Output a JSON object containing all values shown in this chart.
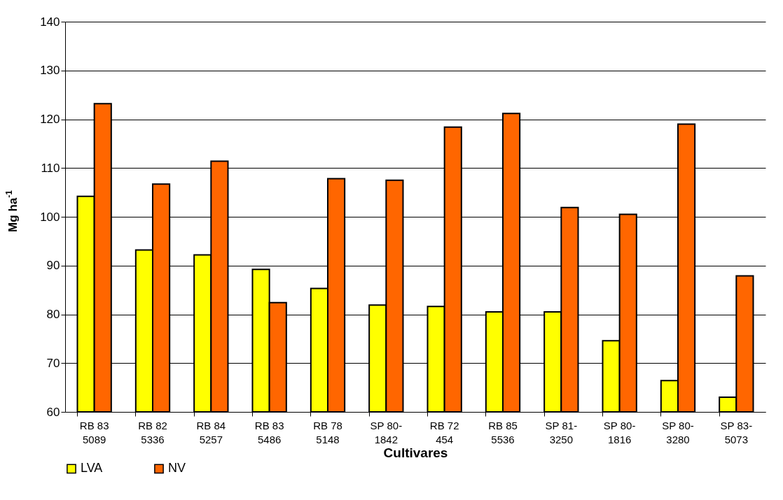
{
  "chart_data": {
    "type": "bar",
    "xlabel": "Cultivares",
    "ylabel": "Mg ha$^{-1}$",
    "categories": [
      "RB 83 5089",
      "RB 82 5336",
      "RB 84 5257",
      "RB 83 5486",
      "RB 78 5148",
      "SP 80-1842",
      "RB 72 454",
      "RB 85 5536",
      "SP 81-3250",
      "SP 80-1816",
      "SP 80-3280",
      "SP 83-5073"
    ],
    "series": [
      {
        "name": "LVA",
        "color": "#ffff00",
        "values": [
          104.2,
          93.2,
          92.2,
          89.2,
          85.3,
          81.9,
          81.6,
          80.5,
          80.5,
          74.6,
          66.4,
          63.0
        ]
      },
      {
        "name": "NV",
        "color": "#ff6600",
        "values": [
          123.2,
          106.7,
          111.4,
          82.4,
          107.8,
          107.5,
          118.4,
          121.2,
          101.9,
          100.5,
          119.0,
          87.9
        ]
      }
    ],
    "ylim": [
      60,
      140
    ],
    "yticks": [
      60,
      70,
      80,
      90,
      100,
      110,
      120,
      130,
      140
    ],
    "grid": "y",
    "legend": "bottom"
  }
}
